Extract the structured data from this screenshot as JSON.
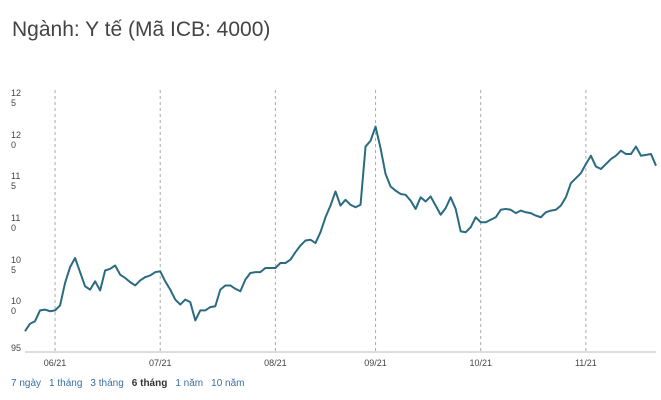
{
  "title": "Ngành: Y tế (Mã ICB: 4000)",
  "chart_data": {
    "type": "line",
    "xlim": [
      0,
      126
    ],
    "xticks": [
      {
        "value": 6,
        "label": "06/21"
      },
      {
        "value": 27,
        "label": "07/21"
      },
      {
        "value": 50,
        "label": "08/21"
      },
      {
        "value": 70,
        "label": "09/21"
      },
      {
        "value": 91,
        "label": "10/21"
      },
      {
        "value": 112,
        "label": "11/21"
      }
    ],
    "ylim": [
      94.5,
      126
    ],
    "yticks": [
      95,
      100,
      105,
      110,
      115,
      120,
      125
    ],
    "series": [
      {
        "color": "#2a6b80",
        "values": [
          97.0,
          97.9,
          98.2,
          99.5,
          99.6,
          99.4,
          99.5,
          100.1,
          102.8,
          104.7,
          105.8,
          104.1,
          102.4,
          102.0,
          103.0,
          101.9,
          104.3,
          104.5,
          104.9,
          103.8,
          103.4,
          102.9,
          102.5,
          103.1,
          103.5,
          103.7,
          104.1,
          104.2,
          103.0,
          102.0,
          100.8,
          100.2,
          100.8,
          100.5,
          98.3,
          99.5,
          99.5,
          99.9,
          100.0,
          102.0,
          102.5,
          102.5,
          102.1,
          101.8,
          103.2,
          104.0,
          104.1,
          104.1,
          104.6,
          104.6,
          104.6,
          105.2,
          105.2,
          105.6,
          106.5,
          107.3,
          107.9,
          108.0,
          107.6,
          108.9,
          110.7,
          112.1,
          113.8,
          112.1,
          112.8,
          112.2,
          111.9,
          112.2,
          119.2,
          119.9,
          121.6,
          119.0,
          115.9,
          114.4,
          113.9,
          113.5,
          113.4,
          112.7,
          111.7,
          113.1,
          112.6,
          113.2,
          112.1,
          111.0,
          111.8,
          113.1,
          111.7,
          109.0,
          108.9,
          109.5,
          110.7,
          110.1,
          110.1,
          110.4,
          110.7,
          111.6,
          111.7,
          111.6,
          111.2,
          111.5,
          111.3,
          111.2,
          110.9,
          110.7,
          111.3,
          111.5,
          111.6,
          112.1,
          113.1,
          114.8,
          115.4,
          116.0,
          117.1,
          118.1,
          116.8,
          116.5,
          117.1,
          117.7,
          118.1,
          118.7,
          118.3,
          118.3,
          119.2,
          118.1,
          118.2,
          118.3,
          116.9
        ]
      }
    ]
  },
  "ranges": [
    "7 ngày",
    "1 tháng",
    "3 tháng",
    "6 tháng",
    "1 năm",
    "10 năm"
  ],
  "active_range": 3
}
